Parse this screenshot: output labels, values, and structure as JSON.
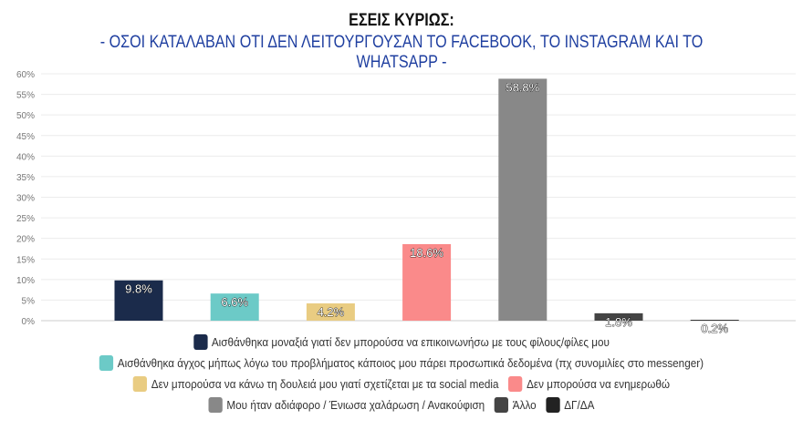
{
  "chart_data": {
    "type": "bar",
    "title": "ΕΣΕΙΣ ΚΥΡΙΩΣ:",
    "subtitle": "- ΟΣΟΙ ΚΑΤΑΛΑΒΑΝ ΟΤΙ ΔΕΝ ΛΕΙΤΟΥΡΓΟΥΣΑΝ ΤΟ FACEBOOK, ΤΟ INSTAGRAM ΚΑΙ ΤΟ WHATSAPP -",
    "xlabel": "",
    "ylabel": "",
    "ylim": [
      0,
      60
    ],
    "yticks": [
      "0%",
      "5%",
      "10%",
      "15%",
      "20%",
      "25%",
      "30%",
      "35%",
      "40%",
      "45%",
      "50%",
      "55%",
      "60%"
    ],
    "grid": true,
    "legend_position": "bottom",
    "categories": [
      "Αισθάνθηκα μοναξιά γιατί δεν μπορούσα να επικοινωνήσω με τους φίλους/φίλες μου",
      "Αισθάνθηκα άγχος μήπως λόγω του προβλήματος κάποιος μου πάρει προσωπικά δεδομένα (πχ συνομιλίες στο messenger)",
      "Δεν μπορούσα να κάνω τη δουλειά μου γιατί σχετίζεται με τα social media",
      "Δεν μπορούσα να ενημερωθώ",
      "Μου ήταν αδιάφορο / Ένιωσα χαλάρωση / Ανακούφιση",
      "Άλλο",
      "ΔΓ/ΔΑ"
    ],
    "values": [
      9.8,
      6.6,
      4.2,
      18.6,
      58.8,
      1.8,
      0.2
    ],
    "labels": [
      "9.8%",
      "6.6%",
      "4.2%",
      "18.6%",
      "58.8%",
      "1.8%",
      "0.2%"
    ],
    "colors": [
      "#1b2b4b",
      "#6ccac7",
      "#e9cc82",
      "#fa8a8a",
      "#888888",
      "#444444",
      "#222222"
    ]
  }
}
